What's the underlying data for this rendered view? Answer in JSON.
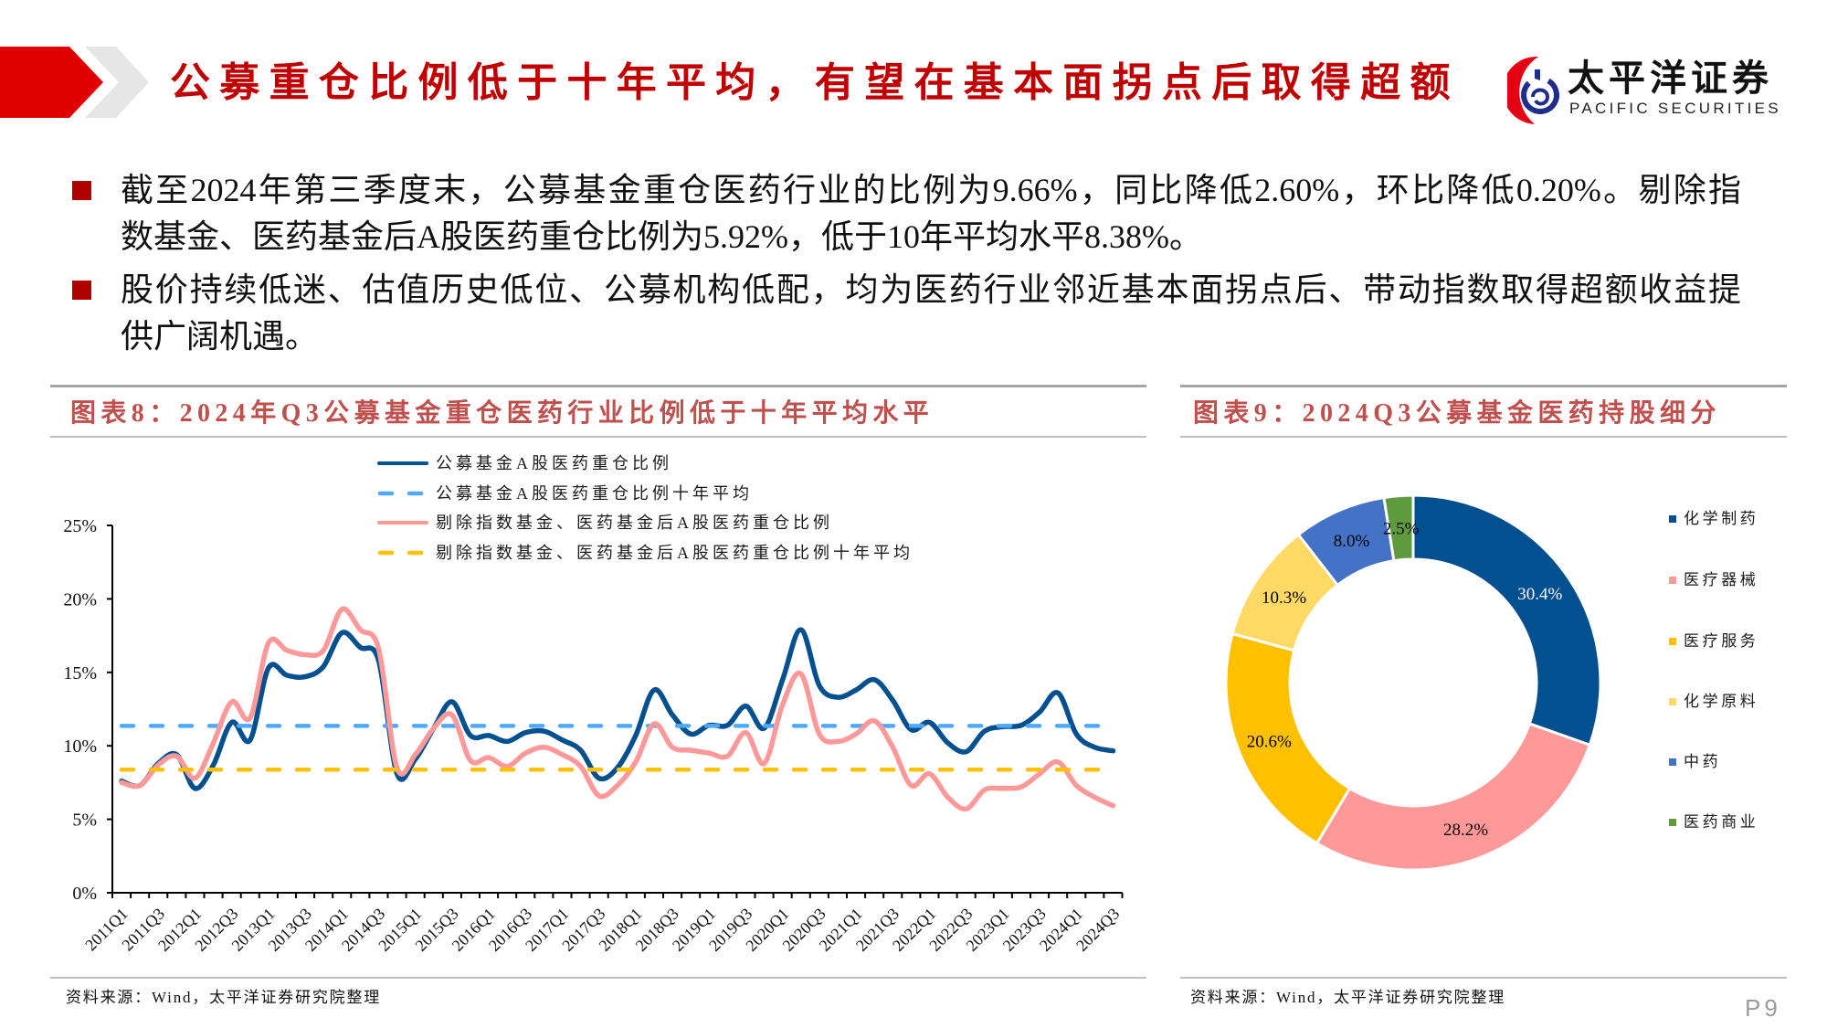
{
  "header": {
    "title": "公募重仓比例低于十年平均，有望在基本面拐点后取得超额"
  },
  "logo": {
    "cn": "太平洋证券",
    "en": "PACIFIC SECURITIES"
  },
  "bullets": [
    {
      "lines": [
        "截至2024年第三季度末，公募基金重仓医药行业的比例为9.66%，同比降低2.60%，环比降低0.20%。剔除指",
        "数基金、医药基金后A股医药重仓比例为5.92%，低于10年平均水平8.38%。"
      ]
    },
    {
      "lines": [
        "股价持续低迷、估值历史低位、公募机构低配，均为医药行业邻近基本面拐点后、带动指数取得超额收益提",
        "供广阔机遇。"
      ]
    }
  ],
  "left_panel": {
    "title": "图表8：2024年Q3公募基金重仓医药行业比例低于十年平均水平",
    "source": "资料来源：Wind，太平洋证券研究院整理"
  },
  "right_panel": {
    "title": "图表9：2024Q3公募基金医药持股细分",
    "source": "资料来源：Wind，太平洋证券研究院整理"
  },
  "page": {
    "number": "P9"
  },
  "colors": {
    "title_red": "#C00000",
    "header_block_red": "#E00000",
    "header_chevron_gray": "#E6E6E6",
    "bullet_red": "#B00000",
    "panel_title": "#C0504D",
    "page_number_gray": "#9B9B9B"
  },
  "chart_data": [
    {
      "type": "line",
      "title": "图表8：2024年Q3公募基金重仓医药行业比例低于十年平均水平",
      "xlabel": "",
      "ylabel": "",
      "ylim": [
        0,
        25
      ],
      "y_tick_values": [
        0,
        5,
        10,
        15,
        20,
        25
      ],
      "y_tick_labels": [
        "0%",
        "5%",
        "10%",
        "15%",
        "20%",
        "25%"
      ],
      "grid": false,
      "legend_position": "top",
      "categories": [
        "2011Q1",
        "2011Q2",
        "2011Q3",
        "2011Q4",
        "2012Q1",
        "2012Q2",
        "2012Q3",
        "2012Q4",
        "2013Q1",
        "2013Q2",
        "2013Q3",
        "2013Q4",
        "2014Q1",
        "2014Q2",
        "2014Q3",
        "2014Q4",
        "2015Q1",
        "2015Q2",
        "2015Q3",
        "2015Q4",
        "2016Q1",
        "2016Q2",
        "2016Q3",
        "2016Q4",
        "2017Q1",
        "2017Q2",
        "2017Q3",
        "2017Q4",
        "2018Q1",
        "2018Q2",
        "2018Q3",
        "2018Q4",
        "2019Q1",
        "2019Q2",
        "2019Q3",
        "2019Q4",
        "2020Q1",
        "2020Q2",
        "2020Q3",
        "2020Q4",
        "2021Q1",
        "2021Q2",
        "2021Q3",
        "2021Q4",
        "2022Q1",
        "2022Q2",
        "2022Q3",
        "2022Q4",
        "2023Q1",
        "2023Q2",
        "2023Q3",
        "2023Q4",
        "2024Q1",
        "2024Q2",
        "2024Q3"
      ],
      "x_tick_every": 2,
      "x_tick_labels": [
        "2011Q1",
        "2011Q3",
        "2012Q1",
        "2012Q3",
        "2013Q1",
        "2013Q3",
        "2014Q1",
        "2014Q3",
        "2015Q1",
        "2015Q3",
        "2016Q1",
        "2016Q3",
        "2017Q1",
        "2017Q3",
        "2018Q1",
        "2018Q3",
        "2019Q1",
        "2019Q3",
        "2020Q1",
        "2020Q3",
        "2021Q1",
        "2021Q3",
        "2022Q1",
        "2022Q3",
        "2023Q1",
        "2023Q3",
        "2024Q1",
        "2024Q3"
      ],
      "series": [
        {
          "name": "公募基金A股医药重仓比例",
          "color": "#02508F",
          "style": "solid",
          "values": [
            7.6,
            7.3,
            8.8,
            9.4,
            7.1,
            8.7,
            11.6,
            10.4,
            15.3,
            14.8,
            14.7,
            15.4,
            17.7,
            16.7,
            15.8,
            8.1,
            9.1,
            11.2,
            13.0,
            10.7,
            10.7,
            10.3,
            10.9,
            11.0,
            10.4,
            9.7,
            7.8,
            8.5,
            10.7,
            13.8,
            12.1,
            10.8,
            11.4,
            11.4,
            12.7,
            11.2,
            14.5,
            17.9,
            14.1,
            13.3,
            13.8,
            14.5,
            13.1,
            11.1,
            11.6,
            10.2,
            9.6,
            11.0,
            11.3,
            11.4,
            12.3,
            13.6,
            10.8,
            9.9,
            9.66
          ]
        },
        {
          "name": "公募基金A股医药重仓比例十年平均",
          "color": "#4FA9F8",
          "style": "dashed",
          "constant": 11.36
        },
        {
          "name": "剔除指数基金、医药基金后A股医药重仓比例",
          "color": "#FF9999",
          "style": "solid",
          "values": [
            7.5,
            7.3,
            8.7,
            9.3,
            7.8,
            10.2,
            13.0,
            11.9,
            17.0,
            16.5,
            16.2,
            16.5,
            19.3,
            17.9,
            16.6,
            8.5,
            9.4,
            11.2,
            12.1,
            9.0,
            9.2,
            8.6,
            9.5,
            9.9,
            9.4,
            8.6,
            6.6,
            7.3,
            8.9,
            11.5,
            9.9,
            9.7,
            9.5,
            9.3,
            10.9,
            8.8,
            12.8,
            14.9,
            10.8,
            10.3,
            10.8,
            11.7,
            9.9,
            7.3,
            8.1,
            6.5,
            5.7,
            7.0,
            7.1,
            7.2,
            8.1,
            8.9,
            7.3,
            6.5,
            5.92
          ]
        },
        {
          "name": "剔除指数基金、医药基金后A股医药重仓比例十年平均",
          "color": "#FFC000",
          "style": "dashed",
          "constant": 8.38
        }
      ]
    },
    {
      "type": "pie",
      "variant": "donut",
      "title": "图表9：2024Q3公募基金医药持股细分",
      "labels": [
        "化学制药",
        "医疗器械",
        "医疗服务",
        "化学原料",
        "中药",
        "医药商业"
      ],
      "values": [
        30.4,
        28.2,
        20.6,
        10.3,
        8.0,
        2.5
      ],
      "data_labels": [
        "30.4%",
        "28.2%",
        "20.6%",
        "10.3%",
        "8.0%",
        "2.5%"
      ],
      "colors": [
        "#02508F",
        "#FF9999",
        "#FFC000",
        "#FFD966",
        "#4472C4",
        "#5F9A3E"
      ],
      "label_colors": [
        "#FFFFFF",
        "#000000",
        "#000000",
        "#000000",
        "#000000",
        "#000000"
      ],
      "start_angle": "12 o'clock, clockwise",
      "legend_position": "right"
    }
  ]
}
